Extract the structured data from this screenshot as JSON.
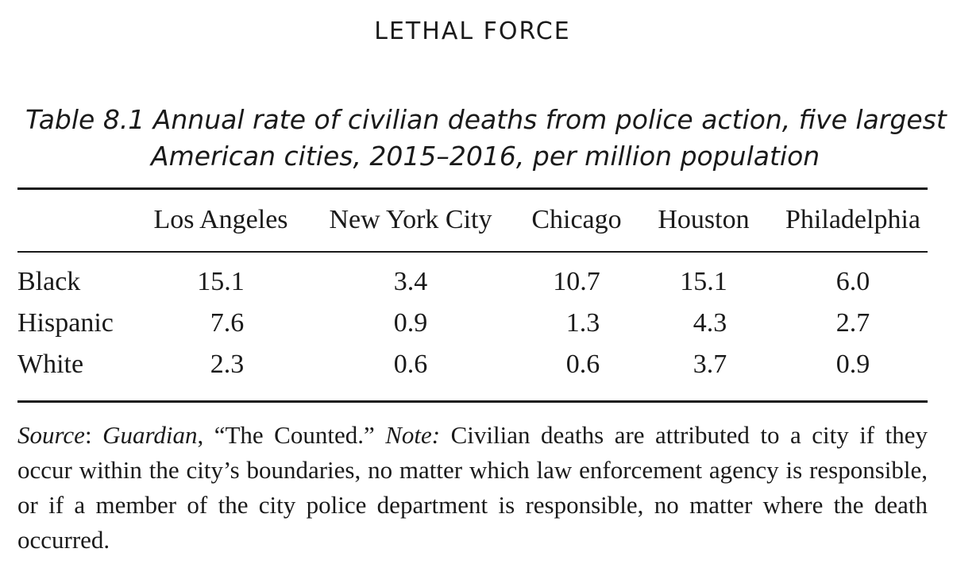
{
  "running_head": "LETHAL FORCE",
  "caption": {
    "line1": "Table 8.1  Annual rate of civilian deaths from police action, five largest",
    "line2": "American cities, 2015–2016, per million population"
  },
  "table": {
    "columns": [
      "Los Angeles",
      "New York City",
      "Chicago",
      "Houston",
      "Philadelphia"
    ],
    "rows": [
      {
        "label": "Black",
        "values": [
          "15.1",
          "3.4",
          "10.7",
          "15.1",
          "6.0"
        ]
      },
      {
        "label": "Hispanic",
        "values": [
          "7.6",
          "0.9",
          "1.3",
          "4.3",
          "2.7"
        ]
      },
      {
        "label": "White",
        "values": [
          "2.3",
          "0.6",
          "0.6",
          "3.7",
          "0.9"
        ]
      }
    ]
  },
  "note": {
    "source_label": "Source",
    "source_sep": ": ",
    "source_pub": "Guardian",
    "source_title": ", “The Counted.” ",
    "note_label": "Note:",
    "note_text": " Civilian deaths are attributed to a city if they occur within the city’s boundaries, no matter which law enforcement agency is responsible, or if a member of the city police department is responsible, no matter where the death occurred."
  }
}
